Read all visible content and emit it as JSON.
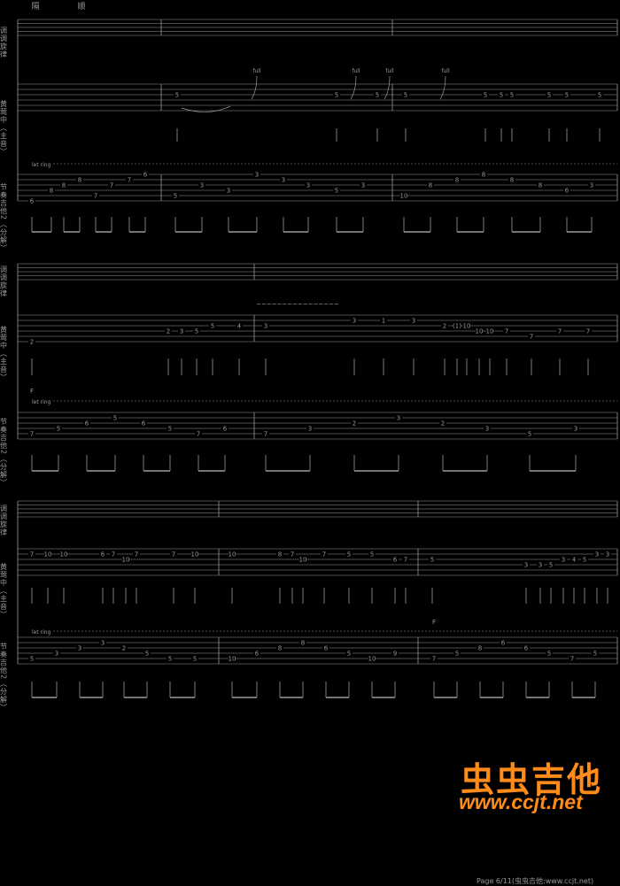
{
  "top_marks": [
    "隔",
    "顺"
  ],
  "track_labels": {
    "vocal": "调调旋律",
    "lead": "黄莺中（主音）",
    "acc": "节奏吉他2（分解）"
  },
  "let_ring": "let ring",
  "chord": "F",
  "bend": "full",
  "systems": [
    {
      "lead_notes": [
        [
          "5",
          200
        ],
        [
          "5",
          380
        ],
        [
          "5",
          426
        ],
        [
          "5",
          458
        ],
        [
          "5",
          548
        ],
        [
          "5",
          566
        ],
        [
          "5",
          578
        ],
        [
          "5",
          620
        ],
        [
          "5",
          640
        ],
        [
          "5",
          677
        ]
      ],
      "acc_notes": [
        [
          "6",
          36,
          5
        ],
        [
          "8",
          58,
          3
        ],
        [
          "8",
          72,
          2
        ],
        [
          "8",
          90,
          1
        ],
        [
          "7",
          108,
          4
        ],
        [
          "7",
          126,
          2
        ],
        [
          "7",
          146,
          1
        ],
        [
          "6",
          164,
          0
        ],
        [
          "5",
          198,
          4
        ],
        [
          "3",
          228,
          2
        ],
        [
          "3",
          258,
          3
        ],
        [
          "3",
          290,
          0
        ],
        [
          "3",
          320,
          1
        ],
        [
          "3",
          348,
          2
        ],
        [
          "5",
          380,
          3
        ],
        [
          "3",
          410,
          2
        ],
        [
          "10",
          456,
          4
        ],
        [
          "8",
          486,
          2
        ],
        [
          "8",
          516,
          1
        ],
        [
          "8",
          546,
          0
        ],
        [
          "8",
          578,
          1
        ],
        [
          "8",
          610,
          2
        ],
        [
          "6",
          640,
          3
        ],
        [
          "3",
          668,
          2
        ]
      ]
    },
    {
      "lead_notes": [
        [
          "2",
          36,
          5
        ],
        [
          "2",
          190,
          3
        ],
        [
          "3",
          205,
          3
        ],
        [
          "5",
          222,
          3
        ],
        [
          "5",
          240,
          2
        ],
        [
          "4",
          270,
          2
        ],
        [
          "3",
          300,
          2
        ],
        [
          "3",
          400,
          1
        ],
        [
          "1",
          433,
          1
        ],
        [
          "3",
          467,
          1
        ],
        [
          "2",
          502,
          2
        ],
        [
          "(1)",
          516,
          2
        ],
        [
          "10",
          527,
          2
        ],
        [
          "10",
          541,
          3
        ],
        [
          "10",
          553,
          3
        ],
        [
          "7",
          572,
          3
        ],
        [
          "7",
          600,
          4
        ],
        [
          "7",
          632,
          3
        ],
        [
          "7",
          664,
          3
        ]
      ],
      "acc_notes": [
        [
          "7",
          36,
          4
        ],
        [
          "5",
          66,
          3
        ],
        [
          "6",
          98,
          2
        ],
        [
          "5",
          130,
          1
        ],
        [
          "6",
          162,
          2
        ],
        [
          "5",
          192,
          3
        ],
        [
          "7",
          224,
          4
        ],
        [
          "6",
          254,
          3
        ],
        [
          "7",
          300,
          4
        ],
        [
          "3",
          350,
          3
        ],
        [
          "2",
          400,
          2
        ],
        [
          "3",
          450,
          1
        ],
        [
          "2",
          500,
          2
        ],
        [
          "3",
          550,
          3
        ],
        [
          "5",
          598,
          4
        ],
        [
          "3",
          650,
          3
        ]
      ]
    },
    {
      "lead_notes": [
        [
          "7",
          36,
          1
        ],
        [
          "10",
          54,
          1
        ],
        [
          "10",
          72,
          1
        ],
        [
          "6",
          116,
          1
        ],
        [
          "7",
          128,
          1
        ],
        [
          "10",
          142,
          2
        ],
        [
          "7",
          154,
          1
        ],
        [
          "7",
          196,
          1
        ],
        [
          "10",
          220,
          1
        ],
        [
          "10",
          262,
          1
        ],
        [
          "8",
          316,
          1
        ],
        [
          "7",
          330,
          1
        ],
        [
          "10",
          342,
          2
        ],
        [
          "7",
          366,
          1
        ],
        [
          "5",
          394,
          1
        ],
        [
          "5",
          420,
          1
        ],
        [
          "6",
          446,
          2
        ],
        [
          "7",
          458,
          2
        ],
        [
          "5",
          488,
          2
        ],
        [
          "3",
          594,
          3
        ],
        [
          "3",
          610,
          3
        ],
        [
          "5",
          622,
          3
        ],
        [
          "3",
          636,
          2
        ],
        [
          "4",
          648,
          2
        ],
        [
          "5",
          660,
          2
        ],
        [
          "3",
          674,
          1
        ],
        [
          "3",
          686,
          1
        ]
      ],
      "acc_notes": [
        [
          "5",
          36,
          4
        ],
        [
          "3",
          64,
          3
        ],
        [
          "3",
          90,
          2
        ],
        [
          "3",
          116,
          1
        ],
        [
          "2",
          140,
          2
        ],
        [
          "5",
          166,
          3
        ],
        [
          "5",
          192,
          4
        ],
        [
          "5",
          220,
          4
        ],
        [
          "10",
          262,
          4
        ],
        [
          "6",
          290,
          3
        ],
        [
          "8",
          316,
          2
        ],
        [
          "8",
          342,
          1
        ],
        [
          "6",
          368,
          2
        ],
        [
          "5",
          394,
          3
        ],
        [
          "10",
          420,
          4
        ],
        [
          "9",
          446,
          3
        ],
        [
          "7",
          490,
          4
        ],
        [
          "5",
          516,
          3
        ],
        [
          "8",
          542,
          2
        ],
        [
          "6",
          568,
          1
        ],
        [
          "6",
          594,
          2
        ],
        [
          "5",
          620,
          3
        ],
        [
          "7",
          646,
          4
        ],
        [
          "5",
          672,
          3
        ]
      ]
    }
  ],
  "watermark": {
    "cn": "虫虫吉他",
    "url": "www.ccjt.net"
  },
  "footer": "Page 6/11(虫虫吉他:www.ccjt.net)"
}
